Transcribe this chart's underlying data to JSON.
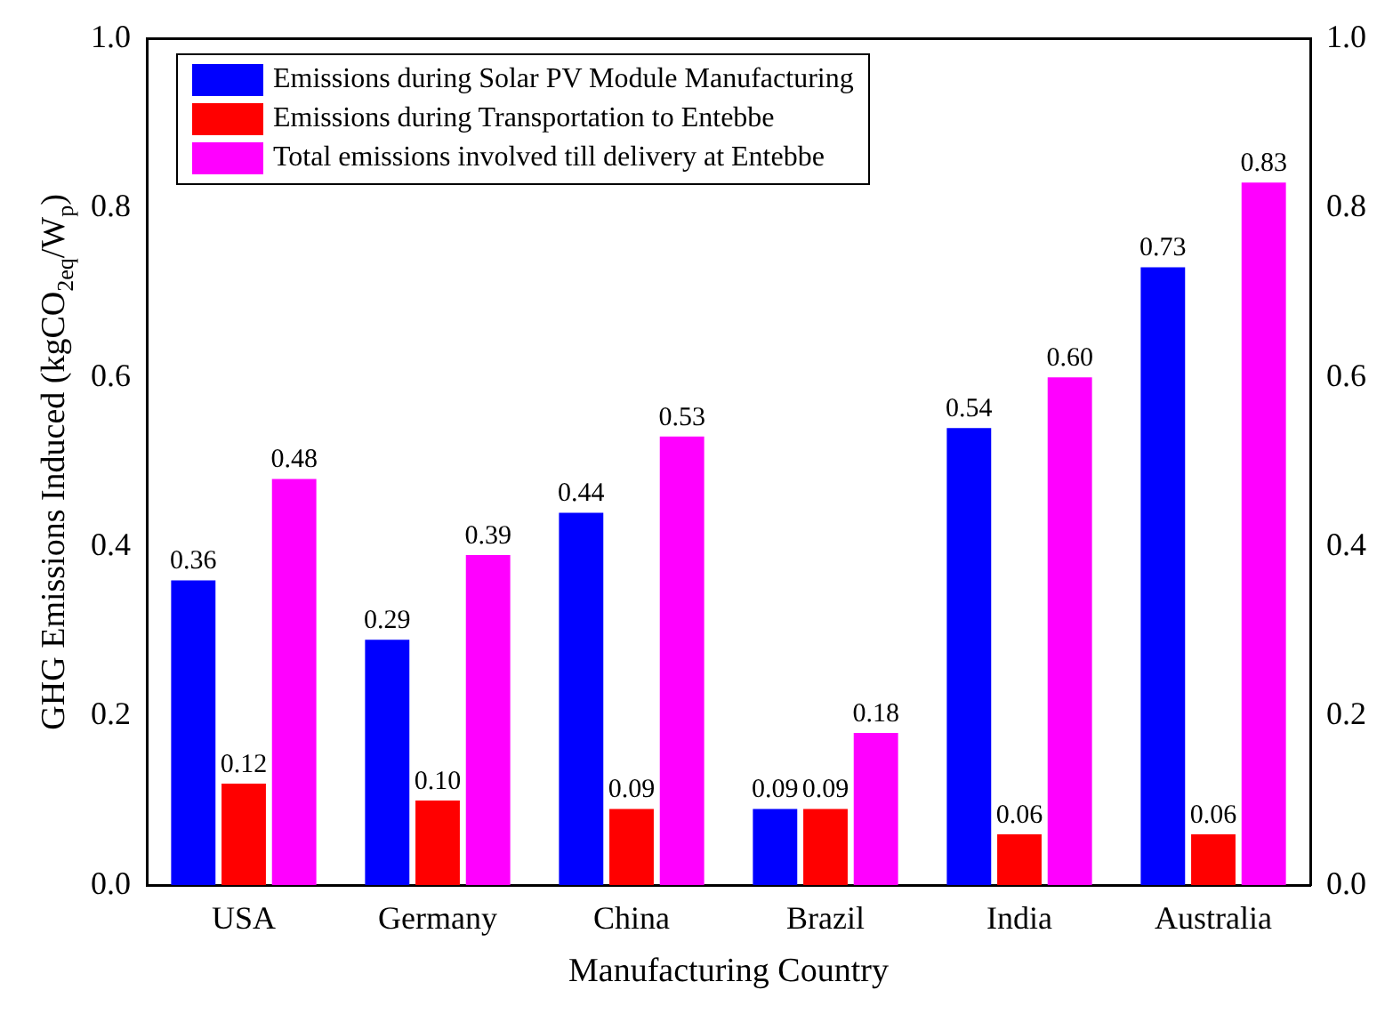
{
  "chart_data": {
    "type": "bar",
    "xlabel": "Manufacturing Country",
    "ylabel": "GHG Emissions Induced (kgCO$_{2eq}$/W$_{p}$)",
    "categories": [
      "USA",
      "Germany",
      "China",
      "Brazil",
      "India",
      "Australia"
    ],
    "series": [
      {
        "name": "Emissions during Solar PV Module Manufacturing",
        "color": "#0000ff",
        "values": [
          0.36,
          0.29,
          0.44,
          0.09,
          0.54,
          0.73
        ],
        "value_labels": [
          "0.36",
          "0.29",
          "0.44",
          "0.09",
          "0.54",
          "0.73"
        ]
      },
      {
        "name": "Emissions during Transportation to Entebbe",
        "color": "#ff0000",
        "values": [
          0.12,
          0.1,
          0.09,
          0.09,
          0.06,
          0.06
        ],
        "value_labels": [
          "0.12",
          "0.10",
          "0.09",
          "0.09",
          "0.06",
          "0.06"
        ]
      },
      {
        "name": "Total emissions involved till delivery at Entebbe",
        "color": "#ff00ff",
        "values": [
          0.48,
          0.39,
          0.53,
          0.18,
          0.6,
          0.83
        ],
        "value_labels": [
          "0.48",
          "0.39",
          "0.53",
          "0.18",
          "0.60",
          "0.83"
        ]
      }
    ],
    "ylim": [
      0,
      1
    ],
    "yticks": [
      {
        "value": 0,
        "label": "0.0"
      },
      {
        "value": 0.2,
        "label": "0.2"
      },
      {
        "value": 0.4,
        "label": "0.4"
      },
      {
        "value": 0.6,
        "label": "0.6"
      },
      {
        "value": 0.8,
        "label": "0.8"
      },
      {
        "value": 1,
        "label": "1.0"
      }
    ],
    "y2lim": [
      0,
      1
    ],
    "y2ticks": [
      {
        "value": 0,
        "label": "0.0"
      },
      {
        "value": 0.2,
        "label": "0.2"
      },
      {
        "value": 0.4,
        "label": "0.4"
      },
      {
        "value": 0.6,
        "label": "0.6"
      },
      {
        "value": 0.8,
        "label": "0.8"
      },
      {
        "value": 1,
        "label": "1.0"
      }
    ],
    "legend": "top left",
    "grid": false
  }
}
